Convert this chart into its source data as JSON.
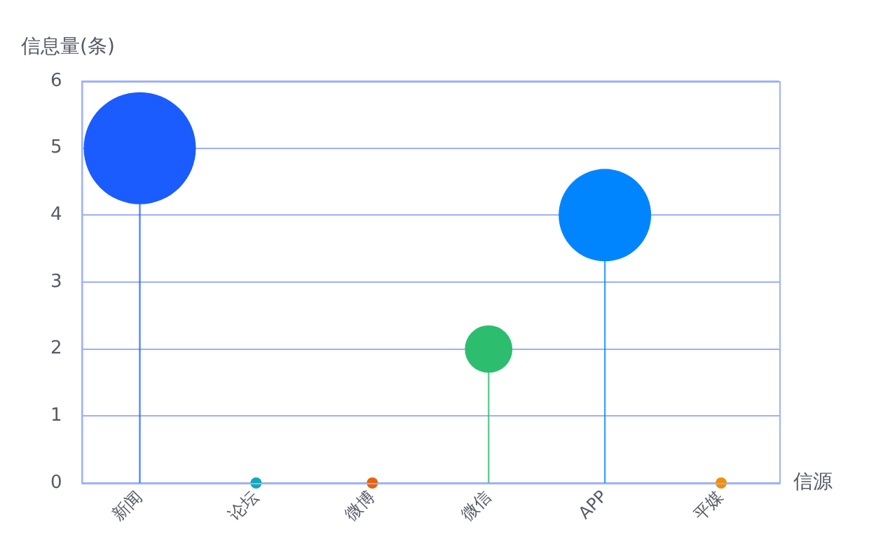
{
  "chart_data": {
    "type": "lollipop",
    "xlabel": "信源",
    "ylabel": "信息量(条)",
    "categories": [
      "新闻",
      "论坛",
      "微博",
      "微信",
      "APP",
      "平媒"
    ],
    "values": [
      5,
      0,
      0,
      2,
      4,
      0
    ],
    "sizes": [
      1,
      0.01,
      0.01,
      0.18,
      0.68,
      0.01
    ],
    "colors": [
      "#1a5cff",
      "#13a8b8",
      "#e8620c",
      "#2dbd6e",
      "#0085ff",
      "#f0900a"
    ],
    "ylim": [
      0,
      6
    ],
    "yticks": [
      0,
      1,
      2,
      3,
      4,
      5,
      6
    ],
    "grid": "y",
    "marker": "circle",
    "legend": false
  }
}
